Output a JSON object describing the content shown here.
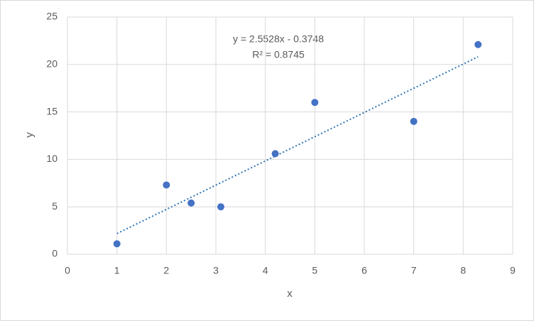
{
  "chart_data": {
    "type": "scatter",
    "x_label": "x",
    "y_label": "y",
    "x": [
      1,
      2,
      2.5,
      3.1,
      4.2,
      5,
      7,
      8.3
    ],
    "values": [
      1.1,
      7.3,
      5.4,
      5.0,
      10.6,
      16,
      14,
      22.1
    ],
    "color": "#4472c4",
    "xlim": [
      0,
      9
    ],
    "xticks": [
      0,
      1,
      2,
      3,
      4,
      5,
      6,
      7,
      8,
      9
    ],
    "ylim": [
      0,
      25
    ],
    "yticks": [
      0,
      5,
      10,
      15,
      20,
      25
    ],
    "grid": true,
    "trendline": {
      "equation": "y = 2.5528x - 0.3748",
      "r_squared": "R² = 0.8745",
      "color": "#2e75b6"
    }
  }
}
